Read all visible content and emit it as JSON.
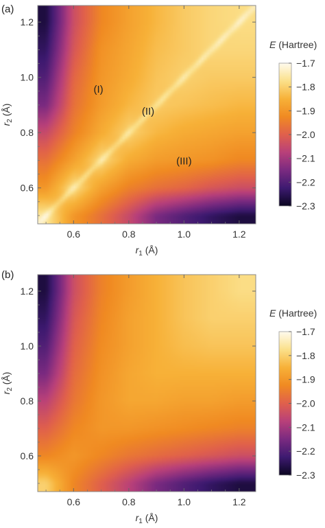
{
  "chart_data": [
    {
      "type": "heatmap",
      "panel_label": "(a)",
      "xlabel_var": "r",
      "xlabel_sub": "1",
      "xlabel_unit": " (Å)",
      "ylabel_var": "r",
      "ylabel_sub": "2",
      "ylabel_unit": " (Å)",
      "xlim": [
        0.47,
        1.26
      ],
      "ylim": [
        0.47,
        1.26
      ],
      "x_ticks": [
        0.6,
        0.8,
        1.0,
        1.2
      ],
      "y_ticks": [
        0.6,
        0.8,
        1.0,
        1.2
      ],
      "x_tick_labels": [
        "0.6",
        "0.8",
        "1.0",
        "1.2"
      ],
      "y_tick_labels": [
        "0.6",
        "0.8",
        "1.0",
        "1.2"
      ],
      "colorbar_title_var": "E",
      "colorbar_title_unit": " (Hartree)",
      "colorbar_range": [
        -2.3,
        -1.7
      ],
      "colorbar_ticks": [
        -1.7,
        -1.8,
        -1.9,
        -2.0,
        -2.1,
        -2.2,
        -2.3
      ],
      "colorbar_tick_labels": [
        "−1.7",
        "−1.8",
        "−1.9",
        "−2.0",
        "−2.1",
        "−2.2",
        "−2.3"
      ],
      "colormap": [
        "#0a0520",
        "#3d1a70",
        "#7a2a80",
        "#b8407a",
        "#e0604c",
        "#f08a22",
        "#f7b138",
        "#fbe08a",
        "#fffbee"
      ],
      "annotations": [
        {
          "text": "(I)",
          "x": 0.69,
          "y": 0.96
        },
        {
          "text": "(II)",
          "x": 0.87,
          "y": 0.88
        },
        {
          "text": "(III)",
          "x": 1.0,
          "y": 0.7
        }
      ],
      "diagonal_ridge": true,
      "energy_samples": {
        "r1": [
          0.5,
          0.6,
          0.7,
          0.8,
          0.9,
          1.0,
          1.1,
          1.2
        ],
        "r2": [
          0.5,
          0.6,
          0.7,
          0.8,
          0.9,
          1.0,
          1.1,
          1.2
        ],
        "note_ridge": "values near r1 = r2 rise to about -1.75",
        "E": [
          [
            -1.76,
            -1.9,
            -1.97,
            -2.05,
            -2.15,
            -2.2,
            -2.24,
            -2.27
          ],
          [
            -1.9,
            -1.78,
            -1.88,
            -1.94,
            -1.97,
            -1.99,
            -2.02,
            -2.04
          ],
          [
            -1.97,
            -1.88,
            -1.79,
            -1.86,
            -1.89,
            -1.9,
            -1.91,
            -1.93
          ],
          [
            -2.05,
            -1.94,
            -1.86,
            -1.8,
            -1.84,
            -1.86,
            -1.87,
            -1.88
          ],
          [
            -2.15,
            -1.97,
            -1.89,
            -1.84,
            -1.81,
            -1.82,
            -1.83,
            -1.84
          ],
          [
            -2.2,
            -1.99,
            -1.9,
            -1.86,
            -1.82,
            -1.8,
            -1.81,
            -1.81
          ],
          [
            -2.24,
            -2.02,
            -1.91,
            -1.87,
            -1.83,
            -1.81,
            -1.79,
            -1.79
          ],
          [
            -2.27,
            -2.04,
            -1.93,
            -1.88,
            -1.84,
            -1.81,
            -1.79,
            -1.78
          ]
        ]
      }
    },
    {
      "type": "heatmap",
      "panel_label": "(b)",
      "xlabel_var": "r",
      "xlabel_sub": "1",
      "xlabel_unit": " (Å)",
      "ylabel_var": "r",
      "ylabel_sub": "2",
      "ylabel_unit": " (Å)",
      "xlim": [
        0.47,
        1.26
      ],
      "ylim": [
        0.47,
        1.26
      ],
      "x_ticks": [
        0.6,
        0.8,
        1.0,
        1.2
      ],
      "y_ticks": [
        0.6,
        0.8,
        1.0,
        1.2
      ],
      "x_tick_labels": [
        "0.6",
        "0.8",
        "1.0",
        "1.2"
      ],
      "y_tick_labels": [
        "0.6",
        "0.8",
        "1.0",
        "1.2"
      ],
      "colorbar_title_var": "E",
      "colorbar_title_unit": " (Hartree)",
      "colorbar_range": [
        -2.3,
        -1.7
      ],
      "colorbar_ticks": [
        -1.7,
        -1.8,
        -1.9,
        -2.0,
        -2.1,
        -2.2,
        -2.3
      ],
      "colorbar_tick_labels": [
        "−1.7",
        "−1.8",
        "−1.9",
        "−2.0",
        "−2.1",
        "−2.2",
        "−2.3"
      ],
      "colormap": [
        "#0a0520",
        "#3d1a70",
        "#7a2a80",
        "#b8407a",
        "#e0604c",
        "#f08a22",
        "#f7b138",
        "#fbe08a",
        "#fffbee"
      ],
      "annotations": [],
      "diagonal_ridge": false,
      "energy_samples": {
        "r1": [
          0.5,
          0.6,
          0.7,
          0.8,
          0.9,
          1.0,
          1.1,
          1.2
        ],
        "r2": [
          0.5,
          0.6,
          0.7,
          0.8,
          0.9,
          1.0,
          1.1,
          1.2
        ],
        "E": [
          [
            -1.8,
            -1.93,
            -2.0,
            -2.07,
            -2.15,
            -2.2,
            -2.24,
            -2.27
          ],
          [
            -1.93,
            -1.9,
            -1.93,
            -1.96,
            -1.98,
            -2.0,
            -2.02,
            -2.04
          ],
          [
            -2.0,
            -1.93,
            -1.9,
            -1.9,
            -1.91,
            -1.92,
            -1.93,
            -1.94
          ],
          [
            -2.07,
            -1.96,
            -1.9,
            -1.87,
            -1.87,
            -1.88,
            -1.88,
            -1.89
          ],
          [
            -2.15,
            -1.98,
            -1.91,
            -1.87,
            -1.85,
            -1.85,
            -1.85,
            -1.85
          ],
          [
            -2.2,
            -2.0,
            -1.92,
            -1.88,
            -1.85,
            -1.83,
            -1.82,
            -1.82
          ],
          [
            -2.24,
            -2.02,
            -1.93,
            -1.88,
            -1.85,
            -1.82,
            -1.8,
            -1.8
          ],
          [
            -2.27,
            -2.04,
            -1.94,
            -1.89,
            -1.85,
            -1.82,
            -1.8,
            -1.78
          ]
        ]
      }
    }
  ]
}
